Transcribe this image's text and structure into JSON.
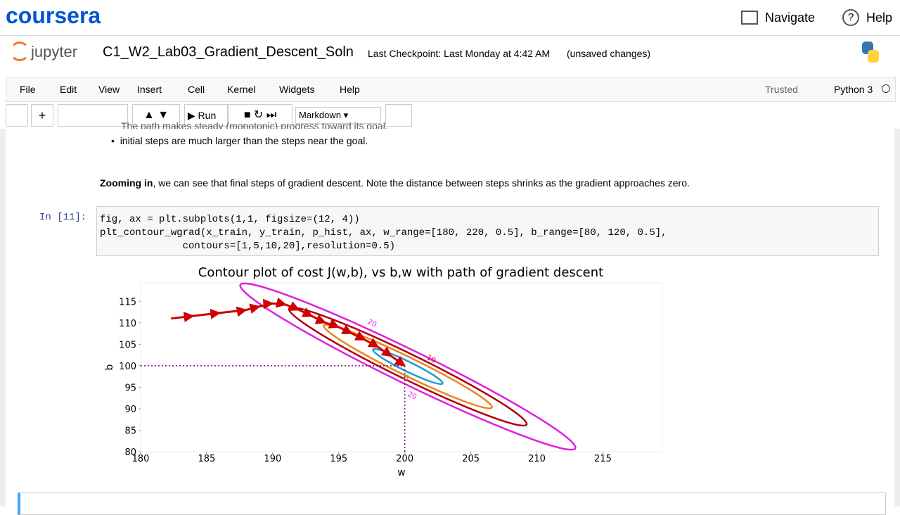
{
  "header": {
    "brand": "coursera",
    "navigate": "Navigate",
    "help": "Help"
  },
  "notebook": {
    "logo": "jupyter",
    "title": "C1_W2_Lab03_Gradient_Descent_Soln",
    "checkpoint": "Last Checkpoint: Last Monday at 4:42 AM",
    "status": "(unsaved changes)"
  },
  "menu": {
    "items": [
      "File",
      "Edit",
      "View",
      "Insert",
      "Cell",
      "Kernel",
      "Widgets",
      "Help"
    ],
    "trusted": "Trusted",
    "kernel": "Python 3"
  },
  "toolbar": {
    "run": "Run",
    "cell_type": "Markdown"
  },
  "cells": {
    "bullets": [
      "The path makes steady (monotonic) progress toward its goal.",
      "initial steps are much larger than the steps near the goal."
    ],
    "zoom_bold": "Zooming in",
    "zoom_text": ", we can see that final steps of gradient descent. Note the distance between steps shrinks as the gradient approaches zero.",
    "prompt": "In [11]:",
    "code": [
      "fig, ax = plt.subplots(1,1, figsize=(12, 4))",
      "plt_contour_wgrad(x_train, y_train, p_hist, ax, w_range=[180, 220, 0.5], b_range=[80, 120, 0.5],",
      "              contours=[1,5,10,20],resolution=0.5)"
    ]
  },
  "chart_data": {
    "type": "contour",
    "title": "Contour plot of cost J(w,b), vs b,w with path of gradient descent",
    "xlabel": "w",
    "ylabel": "b",
    "xlim": [
      180,
      219.5
    ],
    "ylim": [
      80,
      119.3
    ],
    "xticks": [
      180,
      185,
      190,
      195,
      200,
      205,
      210,
      215
    ],
    "yticks": [
      80,
      85,
      90,
      95,
      100,
      105,
      110,
      115
    ],
    "contour_levels": [
      1,
      5,
      10,
      20
    ],
    "contour_colors": [
      "#1f9bd0",
      "#e8861a",
      "#b00010",
      "#e020e0"
    ],
    "path": {
      "w": [
        182.3,
        184,
        186,
        188,
        189,
        190,
        191,
        192,
        193,
        194,
        195,
        196,
        197,
        198,
        199,
        200
      ],
      "b": [
        111,
        111.6,
        112.3,
        113,
        113.8,
        114.5,
        114.2,
        113,
        111.5,
        110,
        109,
        107.5,
        106,
        104.3,
        102.2,
        100
      ]
    },
    "path_color": "#d00000",
    "final_point": {
      "w": 200,
      "b": 100
    },
    "final_color": "#800080"
  }
}
